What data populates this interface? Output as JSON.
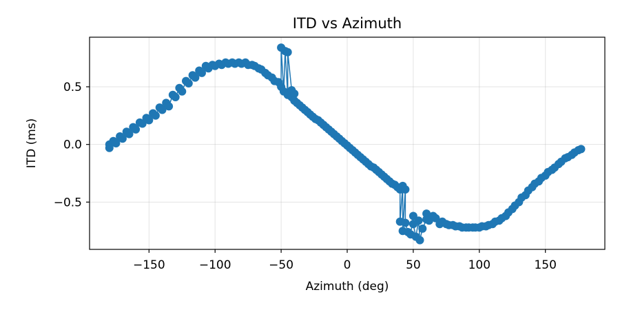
{
  "chart_data": {
    "type": "line",
    "title": "ITD vs Azimuth",
    "xlabel": "Azimuth (deg)",
    "ylabel": "ITD (ms)",
    "xlim": [
      -195,
      195
    ],
    "ylim": [
      -0.91,
      0.93
    ],
    "x_ticks": [
      -150,
      -100,
      -50,
      0,
      50,
      100,
      150
    ],
    "x_tick_labels": [
      "−150",
      "−100",
      "−50",
      "0",
      "50",
      "100",
      "150"
    ],
    "y_ticks": [
      0.5,
      0.0,
      -0.5
    ],
    "y_tick_labels": [
      "0.5",
      "0.0",
      "−0.5"
    ],
    "grid": true,
    "legend": "none",
    "series": [
      {
        "color": "#1f77b4",
        "marker": "circle",
        "x": [
          -180,
          -180,
          -177,
          -175,
          -172,
          -170,
          -167,
          -165,
          -162,
          -160,
          -157,
          -155,
          -152,
          -150,
          -147,
          -145,
          -142,
          -140,
          -137,
          -135,
          -132,
          -130,
          -127,
          -125,
          -122,
          -120,
          -117,
          -115,
          -112,
          -110,
          -107,
          -105,
          -102,
          -100,
          -97,
          -95,
          -92,
          -90,
          -87,
          -85,
          -82,
          -80,
          -77,
          -75,
          -72,
          -70,
          -67,
          -65,
          -62,
          -60,
          -57,
          -55,
          -52,
          -50,
          -50,
          -48,
          -47,
          -45,
          -45,
          -42,
          -42,
          -40,
          -40,
          -38,
          -36,
          -34,
          -32,
          -30,
          -28,
          -26,
          -24,
          -22,
          -20,
          -18,
          -16,
          -14,
          -12,
          -10,
          -8,
          -6,
          -4,
          -2,
          0,
          2,
          4,
          6,
          8,
          10,
          12,
          14,
          16,
          18,
          20,
          22,
          24,
          26,
          28,
          30,
          32,
          34,
          36,
          38,
          40,
          40,
          42,
          42,
          44,
          44,
          46,
          48,
          50,
          50,
          52,
          54,
          55,
          57,
          60,
          60,
          62,
          65,
          67,
          70,
          72,
          75,
          77,
          80,
          82,
          85,
          87,
          90,
          92,
          95,
          97,
          100,
          102,
          105,
          107,
          110,
          112,
          115,
          117,
          120,
          122,
          125,
          127,
          130,
          132,
          135,
          137,
          140,
          142,
          145,
          147,
          150,
          152,
          155,
          157,
          160,
          162,
          165,
          167,
          170,
          172,
          175,
          177
        ],
        "y": [
          0.0,
          -0.03,
          0.03,
          0.01,
          0.07,
          0.05,
          0.11,
          0.09,
          0.15,
          0.13,
          0.19,
          0.18,
          0.23,
          0.21,
          0.27,
          0.25,
          0.32,
          0.3,
          0.36,
          0.33,
          0.43,
          0.41,
          0.49,
          0.46,
          0.55,
          0.53,
          0.6,
          0.58,
          0.64,
          0.62,
          0.68,
          0.66,
          0.69,
          0.68,
          0.7,
          0.69,
          0.71,
          0.7,
          0.71,
          0.7,
          0.71,
          0.7,
          0.71,
          0.69,
          0.69,
          0.68,
          0.66,
          0.65,
          0.62,
          0.6,
          0.58,
          0.55,
          0.54,
          0.5,
          0.84,
          0.46,
          0.81,
          0.43,
          0.8,
          0.47,
          0.41,
          0.44,
          0.38,
          0.36,
          0.34,
          0.32,
          0.3,
          0.28,
          0.26,
          0.24,
          0.22,
          0.21,
          0.19,
          0.17,
          0.15,
          0.13,
          0.11,
          0.09,
          0.07,
          0.05,
          0.03,
          0.01,
          -0.01,
          -0.03,
          -0.05,
          -0.07,
          -0.09,
          -0.11,
          -0.13,
          -0.15,
          -0.17,
          -0.19,
          -0.2,
          -0.22,
          -0.24,
          -0.26,
          -0.28,
          -0.3,
          -0.32,
          -0.34,
          -0.35,
          -0.37,
          -0.39,
          -0.67,
          -0.36,
          -0.75,
          -0.39,
          -0.68,
          -0.76,
          -0.78,
          -0.62,
          -0.69,
          -0.8,
          -0.66,
          -0.83,
          -0.73,
          -0.65,
          -0.6,
          -0.66,
          -0.62,
          -0.64,
          -0.69,
          -0.67,
          -0.69,
          -0.7,
          -0.7,
          -0.71,
          -0.71,
          -0.72,
          -0.72,
          -0.72,
          -0.72,
          -0.72,
          -0.72,
          -0.71,
          -0.71,
          -0.7,
          -0.69,
          -0.67,
          -0.66,
          -0.64,
          -0.62,
          -0.59,
          -0.56,
          -0.53,
          -0.5,
          -0.46,
          -0.44,
          -0.4,
          -0.37,
          -0.34,
          -0.32,
          -0.29,
          -0.27,
          -0.24,
          -0.22,
          -0.2,
          -0.17,
          -0.15,
          -0.12,
          -0.11,
          -0.09,
          -0.07,
          -0.05,
          -0.04
        ]
      }
    ]
  }
}
